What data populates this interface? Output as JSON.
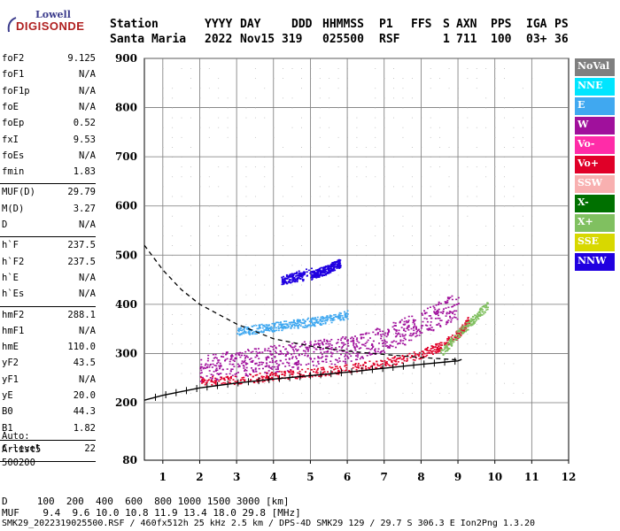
{
  "logo": {
    "line1": "Lowell",
    "line2": "DIGISONDE"
  },
  "header": {
    "labels": [
      "Station",
      "YYYY",
      "DAY",
      "DDD",
      "HHMMSS",
      "P1",
      "FFS",
      "S",
      "AXN",
      "PPS",
      "IGA",
      "PS"
    ],
    "values": [
      "Santa Maria",
      "2022",
      "Nov15",
      "319",
      "025500",
      "RSF",
      "1",
      "711",
      "100",
      "03+",
      "36"
    ]
  },
  "params": {
    "group1": [
      {
        "name": "foF2",
        "value": "9.125"
      },
      {
        "name": "foF1",
        "value": "N/A"
      },
      {
        "name": "foF1p",
        "value": "N/A"
      },
      {
        "name": "foE",
        "value": "N/A"
      },
      {
        "name": "foEp",
        "value": "0.52"
      },
      {
        "name": "fxI",
        "value": "9.53"
      },
      {
        "name": "foEs",
        "value": "N/A"
      },
      {
        "name": "fmin",
        "value": "1.83"
      }
    ],
    "group2": [
      {
        "name": "MUF(D)",
        "value": "29.79"
      },
      {
        "name": "M(D)",
        "value": "3.27"
      },
      {
        "name": "D",
        "value": "N/A"
      }
    ],
    "group3": [
      {
        "name": "h`F",
        "value": "237.5"
      },
      {
        "name": "h`F2",
        "value": "237.5"
      },
      {
        "name": "h`E",
        "value": "N/A"
      },
      {
        "name": "h`Es",
        "value": "N/A"
      }
    ],
    "group4": [
      {
        "name": "hmF2",
        "value": "288.1"
      },
      {
        "name": "hmF1",
        "value": "N/A"
      },
      {
        "name": "hmE",
        "value": "110.0"
      },
      {
        "name": "yF2",
        "value": "43.5"
      },
      {
        "name": "yF1",
        "value": "N/A"
      },
      {
        "name": "yE",
        "value": "20.0"
      },
      {
        "name": "B0",
        "value": "44.3"
      },
      {
        "name": "B1",
        "value": "1.82"
      }
    ],
    "group5": [
      {
        "name": "C-level",
        "value": "22"
      }
    ]
  },
  "autoscale": {
    "line1": "Auto:",
    "line2": "Artist5",
    "line3": "500200"
  },
  "legend": [
    {
      "label": "NoVal",
      "color": "#7f7f7f"
    },
    {
      "label": "NNE",
      "color": "#00e5ff"
    },
    {
      "label": "E",
      "color": "#40a8f0"
    },
    {
      "label": "W",
      "color": "#a0109c"
    },
    {
      "label": "Vo-",
      "color": "#ff2ca8"
    },
    {
      "label": "Vo+",
      "color": "#e00028"
    },
    {
      "label": "SSW",
      "color": "#f8b0b0"
    },
    {
      "label": "X-",
      "color": "#007000"
    },
    {
      "label": "X+",
      "color": "#80c060"
    },
    {
      "label": "SSE",
      "color": "#d8d800"
    },
    {
      "label": "NNW",
      "color": "#2000e0"
    }
  ],
  "chart_data": {
    "type": "scatter",
    "xlabel": "",
    "ylabel": "",
    "x_ticks": [
      "1",
      "2",
      "3",
      "4",
      "5",
      "6",
      "7",
      "8",
      "9",
      "10",
      "11",
      "12"
    ],
    "y_ticks": [
      "80",
      "200",
      "300",
      "400",
      "500",
      "600",
      "700",
      "800",
      "900"
    ],
    "xlim": [
      0.5,
      12
    ],
    "ylim": [
      80,
      900
    ],
    "grid": true,
    "legend_position": "right",
    "series": [
      {
        "color": "#2000e0",
        "points": [
          [
            5.0,
            460
          ],
          [
            5.2,
            465
          ],
          [
            5.4,
            470
          ],
          [
            5.6,
            478
          ],
          [
            5.8,
            485
          ],
          [
            4.2,
            450
          ],
          [
            4.5,
            455
          ],
          [
            4.8,
            458
          ]
        ]
      },
      {
        "color": "#a0109c",
        "points": [
          [
            2.0,
            270
          ],
          [
            2.5,
            275
          ],
          [
            3.0,
            280
          ],
          [
            3.5,
            285
          ],
          [
            4.0,
            290
          ],
          [
            4.5,
            295
          ],
          [
            5.0,
            300
          ],
          [
            5.5,
            305
          ],
          [
            6.0,
            310
          ],
          [
            6.5,
            320
          ],
          [
            7.0,
            330
          ],
          [
            7.5,
            345
          ],
          [
            8.0,
            360
          ],
          [
            8.5,
            380
          ],
          [
            9.0,
            400
          ]
        ]
      },
      {
        "color": "#e00028",
        "points": [
          [
            2.0,
            245
          ],
          [
            3.0,
            248
          ],
          [
            4.0,
            255
          ],
          [
            5.0,
            262
          ],
          [
            6.0,
            270
          ],
          [
            7.0,
            282
          ],
          [
            8.0,
            300
          ],
          [
            8.5,
            315
          ],
          [
            9.0,
            340
          ],
          [
            9.3,
            370
          ]
        ]
      },
      {
        "color": "#40a8f0",
        "points": [
          [
            3.0,
            345
          ],
          [
            3.5,
            350
          ],
          [
            4.0,
            355
          ],
          [
            4.5,
            360
          ],
          [
            5.0,
            365
          ],
          [
            5.5,
            370
          ],
          [
            6.0,
            380
          ]
        ]
      },
      {
        "color": "#80c060",
        "points": [
          [
            8.5,
            300
          ],
          [
            9.0,
            340
          ],
          [
            9.4,
            370
          ],
          [
            9.8,
            400
          ]
        ]
      }
    ],
    "model_curve_dashed": [
      [
        0.5,
        520
      ],
      [
        1.0,
        470
      ],
      [
        1.5,
        430
      ],
      [
        2.0,
        400
      ],
      [
        3.0,
        360
      ],
      [
        4.0,
        330
      ],
      [
        5.0,
        315
      ],
      [
        6.0,
        305
      ],
      [
        7.0,
        298
      ],
      [
        8.0,
        292
      ],
      [
        9.0,
        287
      ]
    ],
    "profile_curve_ticked": [
      [
        0.5,
        205
      ],
      [
        1.0,
        215
      ],
      [
        2.0,
        230
      ],
      [
        3.0,
        240
      ],
      [
        4.0,
        248
      ],
      [
        5.0,
        255
      ],
      [
        6.0,
        262
      ],
      [
        7.0,
        270
      ],
      [
        8.0,
        278
      ],
      [
        9.0,
        285
      ],
      [
        9.1,
        288
      ]
    ]
  },
  "footer": {
    "row_d": "D     100  200  400  600  800 1000 1500 3000 [km]",
    "row_muf": "MUF    9.4  9.6 10.0 10.8 11.9 13.4 18.0 29.8 [MHz]",
    "file_line": "SMK29_2022319025500.RSF / 460fx512h 25 kHz 2.5 km / DPS-4D SMK29 129 / 29.7 S 306.3 E Ion2Png 1.3.20"
  }
}
